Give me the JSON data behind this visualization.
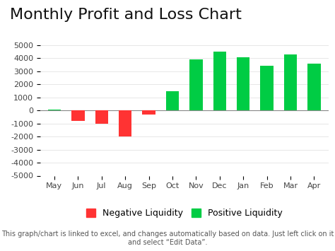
{
  "title": "Monthly Profit and Loss Chart",
  "months": [
    "May",
    "Jun",
    "Jul",
    "Aug",
    "Sep",
    "Oct",
    "Nov",
    "Dec",
    "Jan",
    "Feb",
    "Mar",
    "Apr"
  ],
  "values": [
    50,
    -800,
    -1000,
    -2000,
    -300,
    1500,
    3900,
    4500,
    4100,
    3400,
    4300,
    3600
  ],
  "ylim": [
    -5000,
    5000
  ],
  "yticks": [
    -5000,
    -4000,
    -3000,
    -2000,
    -1000,
    0,
    1000,
    2000,
    3000,
    4000,
    5000
  ],
  "negative_color": "#FF3333",
  "positive_color": "#00CC44",
  "background_color": "#FFFFFF",
  "title_fontsize": 16,
  "tick_fontsize": 8,
  "legend_neg": "Negative Liquidity",
  "legend_pos": "Positive Liquidity",
  "footer_text": "This graph/chart is linked to excel, and changes automatically based on data. Just left click on it\nand select “Edit Data”.",
  "footer_fontsize": 7,
  "grid_color": "#DDDDDD",
  "bar_width": 0.55
}
